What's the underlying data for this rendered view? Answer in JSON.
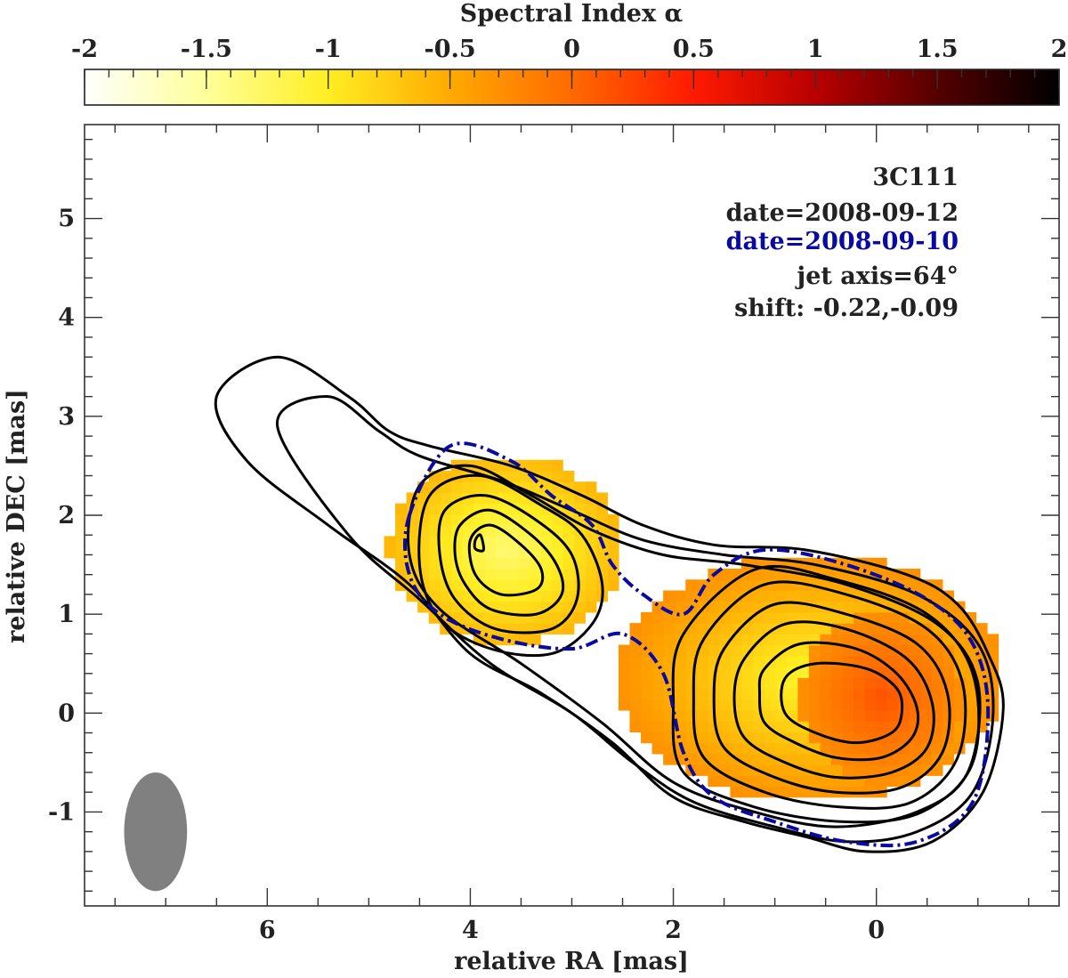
{
  "chart_data": {
    "type": "heatmap",
    "title": "",
    "colorbar": {
      "title": "Spectral Index α",
      "range": [
        -2,
        2
      ],
      "ticks": [
        -2,
        -1.5,
        -1,
        -0.5,
        0,
        0.5,
        1,
        1.5,
        2
      ],
      "tick_labels": [
        "-2",
        "-1.5",
        "-1",
        "-0.5",
        "0",
        "0.5",
        "1",
        "1.5",
        "2"
      ],
      "colormap_stops": [
        "#ffffff",
        "#ffff99",
        "#ffee22",
        "#ffaa00",
        "#ff6a00",
        "#ff1a00",
        "#b80000",
        "#550000",
        "#000000"
      ]
    },
    "xlabel": "relative RA [mas]",
    "ylabel": "relative DEC [mas]",
    "x_reversed": true,
    "xlim": [
      7.8,
      -1.8
    ],
    "ylim": [
      -1.95,
      5.95
    ],
    "x_ticks": [
      6,
      4,
      2,
      0
    ],
    "x_tick_labels": [
      "6",
      "4",
      "2",
      "0"
    ],
    "y_ticks": [
      -1,
      0,
      1,
      2,
      3,
      4,
      5
    ],
    "y_tick_labels": [
      "-1",
      "0",
      "1",
      "2",
      "3",
      "4",
      "5"
    ],
    "annotations": {
      "source": "3C111",
      "date1": "date=2008-09-12",
      "date2": "date=2008-09-10",
      "jet_axis": "jet axis=64°",
      "shift": "shift: -0.22,-0.09"
    },
    "colors": {
      "date2_text": "#0a0aa0",
      "beam": "#808080",
      "contour": "#000000",
      "contour_secondary": "#0a0aa0"
    },
    "beam": {
      "x": 7.1,
      "y": -1.2,
      "major": 0.6,
      "minor": 0.31,
      "angle_deg": 0
    },
    "spectral_regions": [
      {
        "center": [
          3.6,
          1.6
        ],
        "radius": [
          1.15,
          0.95
        ],
        "alpha_edge": -0.6,
        "alpha_center": -1.35
      },
      {
        "center": [
          0.6,
          0.3
        ],
        "radius": [
          1.9,
          1.25
        ],
        "alpha_edge": -0.3,
        "alpha_center": -1.1
      },
      {
        "center": [
          -0.1,
          0.1
        ],
        "radius": [
          0.8,
          0.85
        ],
        "alpha_edge": -0.3,
        "alpha_center": 0.15
      }
    ],
    "contours_2008_09_12": [
      [
        [
          6.5,
          3.2
        ],
        [
          5.9,
          3.6
        ],
        [
          5.2,
          3.2
        ],
        [
          4.8,
          2.85
        ],
        [
          4.4,
          2.7
        ],
        [
          3.6,
          2.5
        ],
        [
          2.9,
          2.2
        ],
        [
          2.3,
          1.9
        ],
        [
          1.6,
          1.7
        ],
        [
          0.7,
          1.65
        ],
        [
          -0.3,
          1.4
        ],
        [
          -0.8,
          1.1
        ],
        [
          -1.1,
          0.6
        ],
        [
          -1.25,
          0.05
        ],
        [
          -1.05,
          -0.8
        ],
        [
          -0.55,
          -1.3
        ],
        [
          0.1,
          -1.4
        ],
        [
          0.7,
          -1.25
        ],
        [
          1.3,
          -1.1
        ],
        [
          2.0,
          -0.85
        ],
        [
          2.6,
          -0.3
        ],
        [
          3.3,
          0.2
        ],
        [
          4.0,
          0.6
        ],
        [
          4.6,
          1.3
        ],
        [
          5.4,
          1.9
        ],
        [
          6.2,
          2.55
        ],
        [
          6.5,
          3.2
        ]
      ],
      [
        [
          5.9,
          2.9
        ],
        [
          5.4,
          3.2
        ],
        [
          4.9,
          2.85
        ],
        [
          4.5,
          2.6
        ],
        [
          3.7,
          2.35
        ],
        [
          3.0,
          2.05
        ],
        [
          2.3,
          1.75
        ],
        [
          1.5,
          1.6
        ],
        [
          0.6,
          1.5
        ],
        [
          -0.4,
          1.2
        ],
        [
          -1.0,
          0.7
        ],
        [
          -1.15,
          0.0
        ],
        [
          -0.95,
          -0.8
        ],
        [
          -0.4,
          -1.2
        ],
        [
          0.3,
          -1.3
        ],
        [
          1.0,
          -1.15
        ],
        [
          1.8,
          -0.9
        ],
        [
          2.4,
          -0.5
        ],
        [
          3.0,
          0.0
        ],
        [
          3.8,
          0.5
        ],
        [
          4.5,
          1.15
        ],
        [
          5.2,
          1.8
        ],
        [
          5.9,
          2.9
        ]
      ],
      [
        [
          4.5,
          2.3
        ],
        [
          4.0,
          2.5
        ],
        [
          3.4,
          2.2
        ],
        [
          2.8,
          1.85
        ],
        [
          2.1,
          1.6
        ],
        [
          1.3,
          1.5
        ],
        [
          0.3,
          1.3
        ],
        [
          -0.6,
          0.9
        ],
        [
          -1.0,
          0.3
        ],
        [
          -0.9,
          -0.6
        ],
        [
          -0.4,
          -1.0
        ],
        [
          0.4,
          -1.15
        ],
        [
          1.2,
          -1.0
        ],
        [
          2.0,
          -0.7
        ],
        [
          2.7,
          -0.1
        ],
        [
          3.5,
          0.5
        ],
        [
          4.3,
          1.05
        ],
        [
          4.6,
          1.6
        ],
        [
          4.5,
          2.3
        ]
      ],
      [
        [
          4.4,
          2.2
        ],
        [
          3.9,
          2.4
        ],
        [
          3.3,
          2.1
        ],
        [
          2.9,
          1.8
        ],
        [
          2.7,
          1.3
        ],
        [
          2.8,
          0.9
        ],
        [
          3.2,
          0.6
        ],
        [
          3.8,
          0.65
        ],
        [
          4.3,
          0.95
        ],
        [
          4.5,
          1.5
        ],
        [
          4.4,
          2.2
        ]
      ],
      [
        [
          4.25,
          2.05
        ],
        [
          3.85,
          2.2
        ],
        [
          3.35,
          1.95
        ],
        [
          3.0,
          1.6
        ],
        [
          2.95,
          1.15
        ],
        [
          3.2,
          0.85
        ],
        [
          3.75,
          0.85
        ],
        [
          4.15,
          1.15
        ],
        [
          4.3,
          1.6
        ],
        [
          4.25,
          2.05
        ]
      ],
      [
        [
          4.1,
          1.9
        ],
        [
          3.8,
          2.05
        ],
        [
          3.4,
          1.8
        ],
        [
          3.15,
          1.5
        ],
        [
          3.1,
          1.2
        ],
        [
          3.35,
          1.0
        ],
        [
          3.8,
          1.05
        ],
        [
          4.05,
          1.3
        ],
        [
          4.15,
          1.6
        ],
        [
          4.1,
          1.9
        ]
      ],
      [
        [
          4.0,
          1.75
        ],
        [
          3.8,
          1.9
        ],
        [
          3.5,
          1.7
        ],
        [
          3.3,
          1.45
        ],
        [
          3.35,
          1.25
        ],
        [
          3.7,
          1.2
        ],
        [
          3.95,
          1.4
        ],
        [
          4.0,
          1.75
        ]
      ],
      [
        [
          3.95,
          1.75
        ],
        [
          3.9,
          1.8
        ],
        [
          3.87,
          1.65
        ],
        [
          3.95,
          1.66
        ],
        [
          3.95,
          1.75
        ]
      ],
      [
        [
          1.9,
          0.8
        ],
        [
          1.2,
          1.45
        ],
        [
          0.4,
          1.35
        ],
        [
          -0.5,
          1.0
        ],
        [
          -0.95,
          0.4
        ],
        [
          -0.95,
          -0.5
        ],
        [
          -0.45,
          -1.0
        ],
        [
          0.3,
          -1.1
        ],
        [
          1.2,
          -0.95
        ],
        [
          1.9,
          -0.6
        ],
        [
          2.0,
          0.1
        ],
        [
          1.9,
          0.8
        ]
      ],
      [
        [
          1.7,
          0.75
        ],
        [
          1.1,
          1.3
        ],
        [
          0.3,
          1.2
        ],
        [
          -0.5,
          0.85
        ],
        [
          -0.85,
          0.3
        ],
        [
          -0.8,
          -0.45
        ],
        [
          -0.35,
          -0.9
        ],
        [
          0.35,
          -0.95
        ],
        [
          1.1,
          -0.8
        ],
        [
          1.7,
          -0.45
        ],
        [
          1.8,
          0.15
        ],
        [
          1.7,
          0.75
        ]
      ],
      [
        [
          1.5,
          0.65
        ],
        [
          1.0,
          1.1
        ],
        [
          0.3,
          1.0
        ],
        [
          -0.4,
          0.7
        ],
        [
          -0.7,
          0.2
        ],
        [
          -0.65,
          -0.4
        ],
        [
          -0.25,
          -0.75
        ],
        [
          0.4,
          -0.8
        ],
        [
          1.0,
          -0.65
        ],
        [
          1.5,
          -0.35
        ],
        [
          1.6,
          0.15
        ],
        [
          1.5,
          0.65
        ]
      ],
      [
        [
          1.3,
          0.55
        ],
        [
          0.9,
          0.9
        ],
        [
          0.3,
          0.85
        ],
        [
          -0.3,
          0.55
        ],
        [
          -0.55,
          0.1
        ],
        [
          -0.5,
          -0.35
        ],
        [
          -0.15,
          -0.6
        ],
        [
          0.4,
          -0.65
        ],
        [
          0.9,
          -0.5
        ],
        [
          1.3,
          -0.25
        ],
        [
          1.4,
          0.15
        ],
        [
          1.3,
          0.55
        ]
      ],
      [
        [
          1.1,
          0.45
        ],
        [
          0.75,
          0.7
        ],
        [
          0.2,
          0.65
        ],
        [
          -0.2,
          0.4
        ],
        [
          -0.4,
          0.05
        ],
        [
          -0.35,
          -0.25
        ],
        [
          -0.05,
          -0.45
        ],
        [
          0.4,
          -0.45
        ],
        [
          0.8,
          -0.3
        ],
        [
          1.1,
          -0.1
        ],
        [
          1.15,
          0.2
        ],
        [
          1.1,
          0.45
        ]
      ],
      [
        [
          0.9,
          0.35
        ],
        [
          0.6,
          0.5
        ],
        [
          0.1,
          0.45
        ],
        [
          -0.2,
          0.25
        ],
        [
          -0.25,
          0.0
        ],
        [
          -0.15,
          -0.2
        ],
        [
          0.2,
          -0.3
        ],
        [
          0.6,
          -0.2
        ],
        [
          0.9,
          0.0
        ],
        [
          0.9,
          0.35
        ]
      ]
    ],
    "contours_2008_09_10": [
      [
        [
          4.6,
          2.0
        ],
        [
          4.2,
          2.7
        ],
        [
          3.6,
          2.55
        ],
        [
          3.2,
          2.2
        ],
        [
          2.8,
          1.9
        ],
        [
          2.6,
          1.5
        ],
        [
          2.3,
          1.2
        ],
        [
          1.9,
          1.0
        ],
        [
          1.6,
          1.4
        ],
        [
          1.1,
          1.65
        ],
        [
          0.3,
          1.5
        ],
        [
          -0.5,
          1.15
        ],
        [
          -0.95,
          0.7
        ],
        [
          -1.1,
          0.0
        ],
        [
          -0.95,
          -0.9
        ],
        [
          -0.4,
          -1.3
        ],
        [
          0.3,
          -1.3
        ],
        [
          1.0,
          -1.1
        ],
        [
          1.6,
          -0.85
        ],
        [
          1.9,
          -0.4
        ],
        [
          2.1,
          0.4
        ],
        [
          2.5,
          0.8
        ],
        [
          3.0,
          0.65
        ],
        [
          3.7,
          0.75
        ],
        [
          4.3,
          1.0
        ],
        [
          4.6,
          1.4
        ],
        [
          4.6,
          2.0
        ]
      ]
    ]
  }
}
